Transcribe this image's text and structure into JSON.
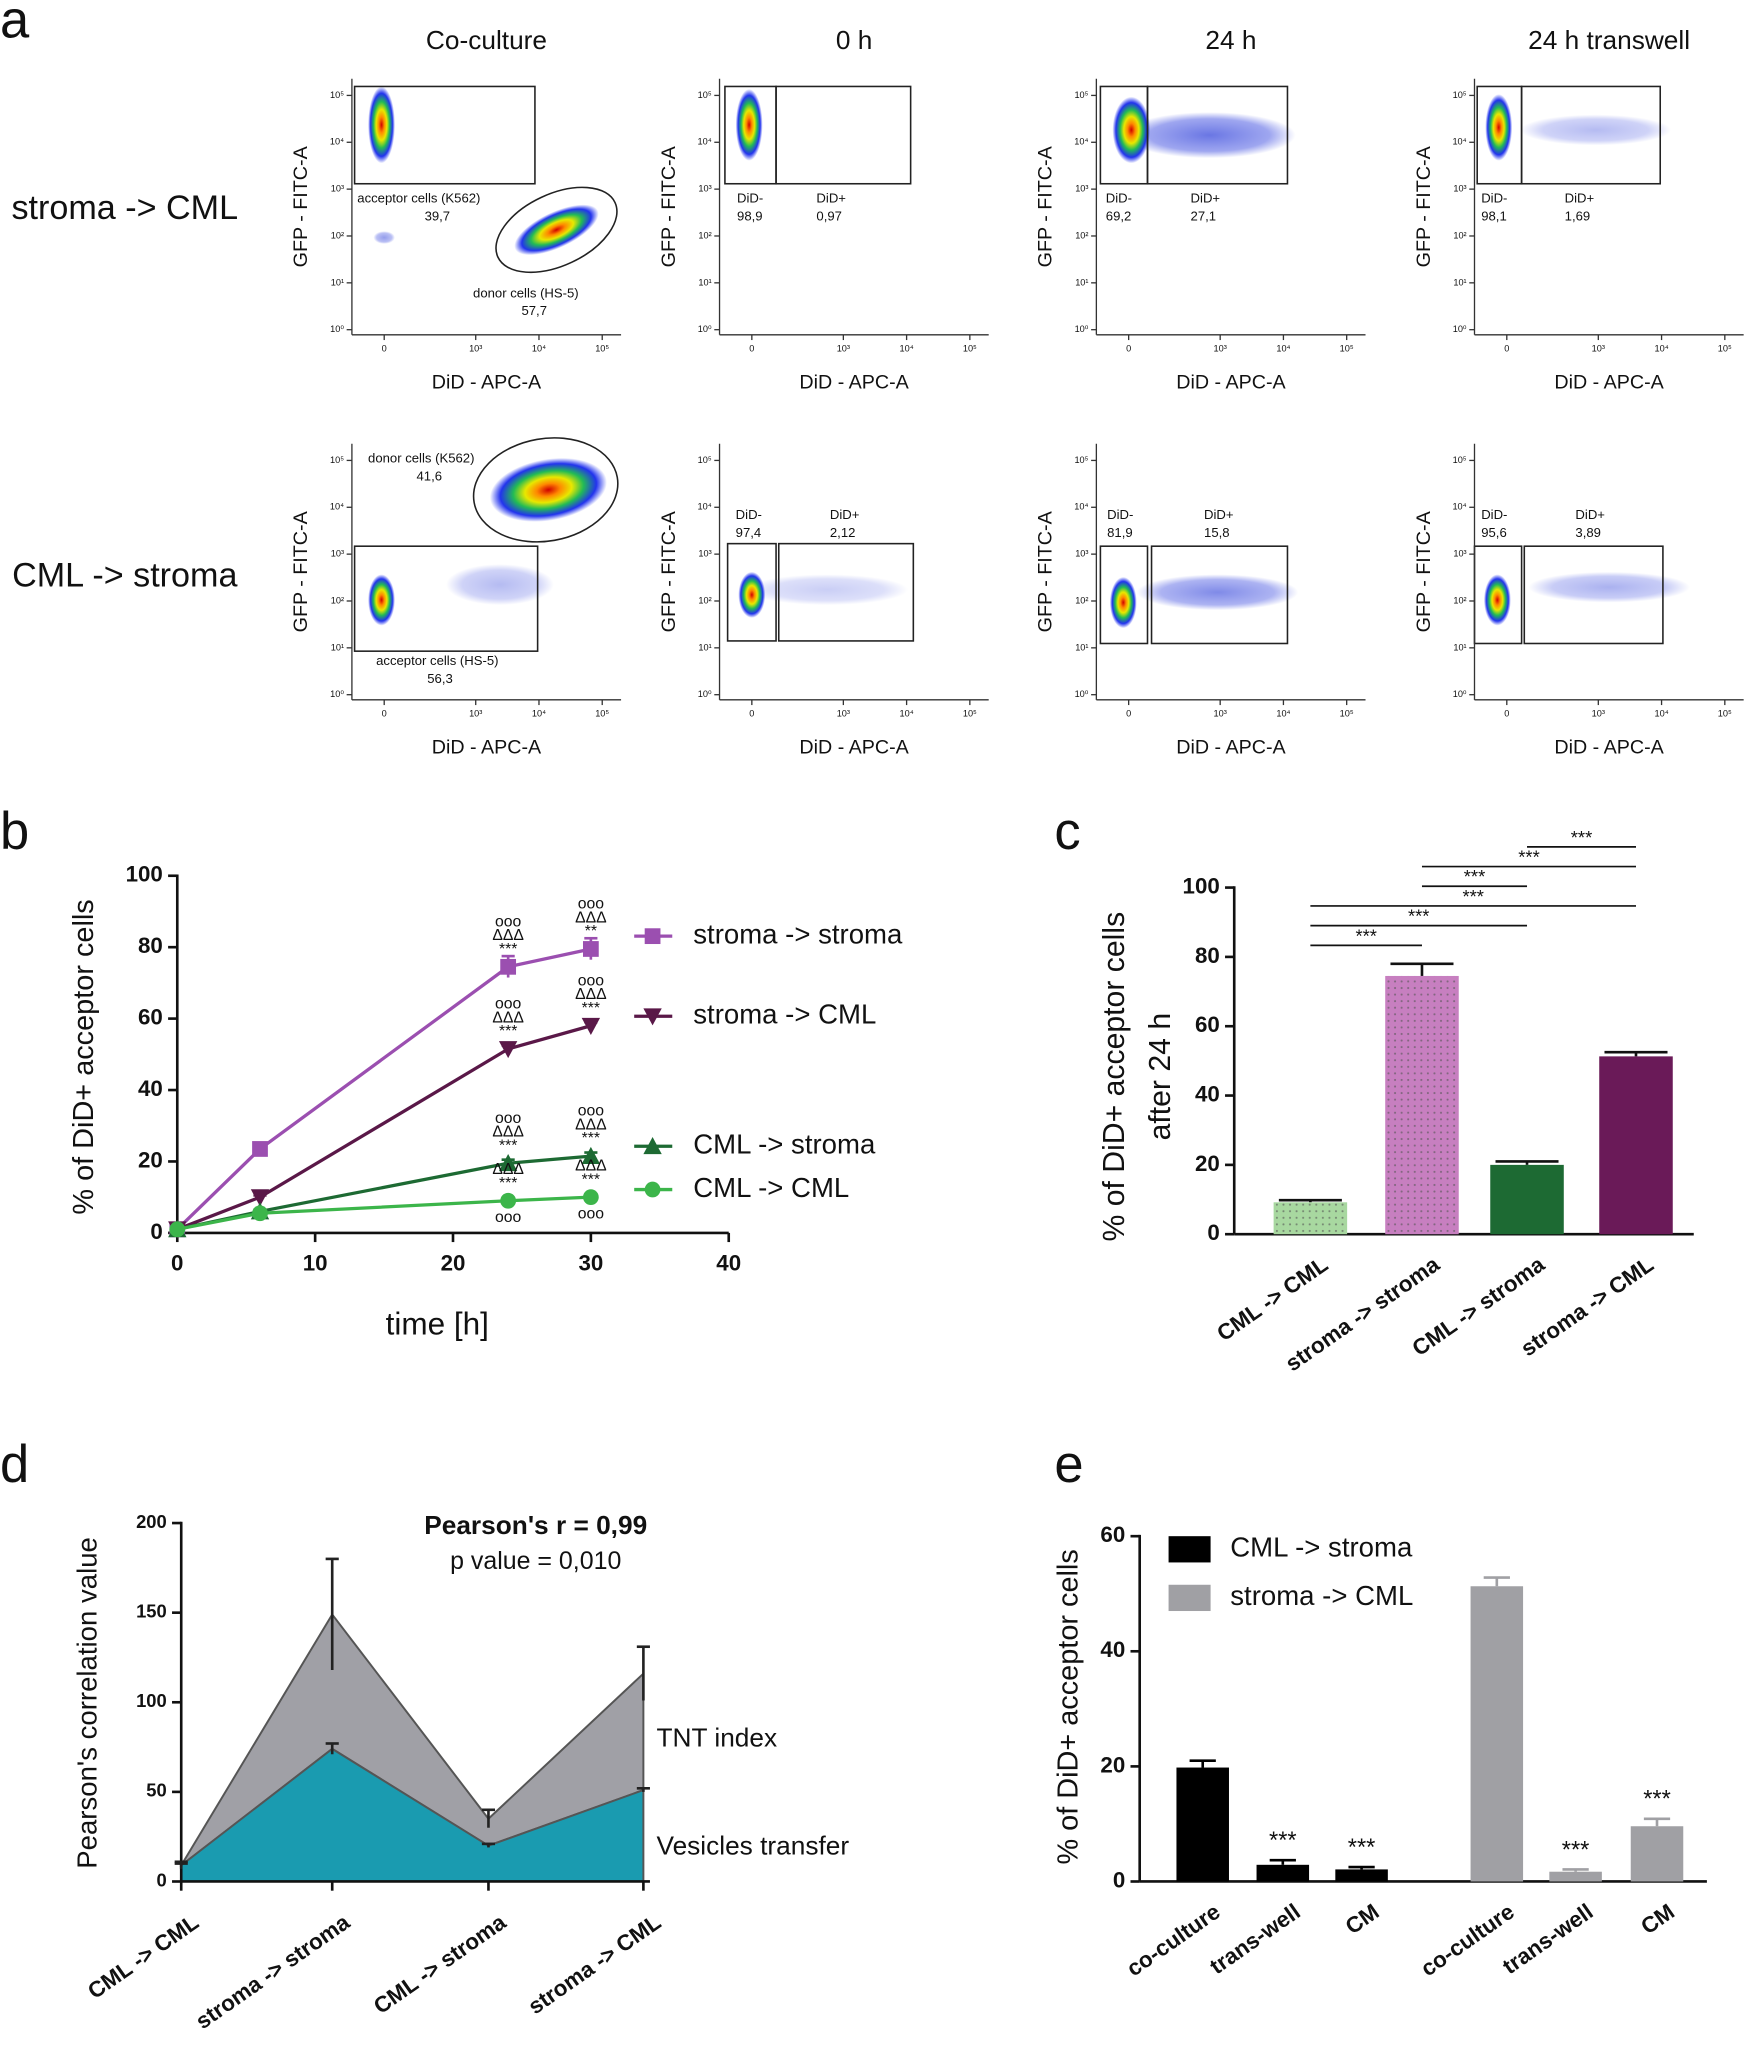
{
  "panel_labels": [
    "a",
    "b",
    "c",
    "d",
    "e"
  ],
  "chart_data": [
    {
      "type": "flow",
      "columns": [
        "Co-culture",
        "0 h",
        "24 h",
        "24 h transwell"
      ],
      "rows": [
        "stroma -> CML",
        "CML -> stroma"
      ],
      "xlabel": "DiD - APC-A",
      "ylabel": "GFP - FITC-A",
      "xticks": [
        0,
        {
          "value": 1000,
          "label": "10³"
        },
        {
          "value": 10000,
          "label": "10⁴"
        },
        {
          "value": 100000,
          "label": "10⁵"
        }
      ],
      "yticks": [
        {
          "value": 1,
          "label": "10⁰"
        },
        {
          "value": 10,
          "label": "10¹"
        },
        {
          "value": 100,
          "label": "10²"
        },
        {
          "value": 1000,
          "label": "10³"
        },
        {
          "value": 10000,
          "label": "10⁴"
        },
        {
          "value": 100000,
          "label": "10⁵"
        }
      ],
      "plots": [
        [
          {
            "gates": [
              "acceptor cells (K562)",
              "donor cells (HS-5)"
            ],
            "values": [
              39.7,
              57.7
            ],
            "value_labels": [
              "39,7",
              "57,7"
            ]
          },
          {
            "gates": [
              "DiD-",
              "DiD+"
            ],
            "values": [
              98.9,
              0.97
            ],
            "value_labels": [
              "98,9",
              "0,97"
            ]
          },
          {
            "gates": [
              "DiD-",
              "DiD+"
            ],
            "values": [
              69.2,
              27.1
            ],
            "value_labels": [
              "69,2",
              "27,1"
            ]
          },
          {
            "gates": [
              "DiD-",
              "DiD+"
            ],
            "values": [
              98.1,
              1.69
            ],
            "value_labels": [
              "98,1",
              "1,69"
            ]
          }
        ],
        [
          {
            "gates": [
              "donor cells (K562)",
              "acceptor cells (HS-5)"
            ],
            "values": [
              41.6,
              56.3
            ],
            "value_labels": [
              "41,6",
              "56,3"
            ]
          },
          {
            "gates": [
              "DiD-",
              "DiD+"
            ],
            "values": [
              97.4,
              2.12
            ],
            "value_labels": [
              "97,4",
              "2,12"
            ]
          },
          {
            "gates": [
              "DiD-",
              "DiD+"
            ],
            "values": [
              81.9,
              15.8
            ],
            "value_labels": [
              "81,9",
              "15,8"
            ]
          },
          {
            "gates": [
              "DiD-",
              "DiD+"
            ],
            "values": [
              95.6,
              3.89
            ],
            "value_labels": [
              "95,6",
              "3,89"
            ]
          }
        ]
      ]
    },
    {
      "type": "line",
      "xlabel": "time [h]",
      "ylabel": "% of DiD+ acceptor cells",
      "x": [
        0,
        6,
        24,
        30
      ],
      "xlim": [
        0,
        40
      ],
      "xticks": [
        0,
        10,
        20,
        30,
        40
      ],
      "ylim": [
        0,
        100
      ],
      "yticks": [
        0,
        20,
        40,
        60,
        80,
        100
      ],
      "series": [
        {
          "name": "stroma -> stroma",
          "color": "#9b4fb0",
          "marker": "square",
          "values": [
            1,
            23.5,
            74.5,
            79.5
          ],
          "errors": [
            0.5,
            1,
            3,
            3
          ],
          "annotations_above": [
            null,
            null,
            [
              "ooo",
              "ΔΔΔ",
              "***"
            ],
            [
              "ooo",
              "ΔΔΔ",
              "**"
            ]
          ],
          "annotations_below": [
            null,
            null,
            null,
            null
          ]
        },
        {
          "name": "stroma -> CML",
          "color": "#5a1848",
          "marker": "triangle-down",
          "values": [
            1,
            10,
            51.5,
            58
          ],
          "errors": [
            0.3,
            0.5,
            1,
            1
          ],
          "annotations_above": [
            null,
            null,
            [
              "ooo",
              "ΔΔΔ",
              "***"
            ],
            [
              "ooo",
              "ΔΔΔ",
              "***"
            ]
          ],
          "annotations_below": [
            null,
            null,
            null,
            null
          ]
        },
        {
          "name": "CML -> stroma",
          "color": "#1d6a33",
          "marker": "triangle",
          "values": [
            1,
            6,
            19.5,
            21.5
          ],
          "errors": [
            0.3,
            0.5,
            1,
            1
          ],
          "annotations_above": [
            null,
            null,
            [
              "ooo",
              "ΔΔΔ",
              "***"
            ],
            [
              "ooo",
              "ΔΔΔ",
              "***"
            ]
          ],
          "annotations_below": [
            null,
            null,
            null,
            null
          ]
        },
        {
          "name": "CML -> CML",
          "color": "#3cb54a",
          "marker": "circle",
          "values": [
            1,
            5.5,
            9,
            10
          ],
          "errors": [
            0.3,
            0.5,
            0.5,
            0.5
          ],
          "annotations_above": [
            null,
            null,
            [
              "ΔΔΔ",
              "***"
            ],
            [
              "ΔΔΔ",
              "***"
            ]
          ],
          "annotations_below": [
            null,
            null,
            [
              "ooo"
            ],
            [
              "ooo"
            ]
          ]
        }
      ]
    },
    {
      "type": "bar",
      "ylabel": [
        "% of DiD+ acceptor cells",
        "after 24 h"
      ],
      "categories": [
        "CML -> CML",
        "stroma -> stroma",
        "CML -> stroma",
        "stroma -> CML"
      ],
      "values": [
        9.2,
        74.5,
        20,
        51.3
      ],
      "errors": [
        0.6,
        3.5,
        1,
        1.2
      ],
      "colors": [
        "#a8d8a0",
        "#c77fc0",
        "#1d6a33",
        "#6a1a58"
      ],
      "patterns": [
        "dots",
        "dots",
        "none",
        "none"
      ],
      "ylim": [
        0,
        100
      ],
      "yticks": [
        0,
        20,
        40,
        60,
        80,
        100
      ],
      "comparisons": [
        {
          "pair": [
            0,
            1
          ],
          "label": "***"
        },
        {
          "pair": [
            0,
            2
          ],
          "label": "***"
        },
        {
          "pair": [
            0,
            3
          ],
          "label": "***"
        },
        {
          "pair": [
            1,
            2
          ],
          "label": "***"
        },
        {
          "pair": [
            1,
            3
          ],
          "label": "***"
        },
        {
          "pair": [
            2,
            3
          ],
          "label": "***"
        }
      ]
    },
    {
      "type": "area",
      "ylabel": "Pearson's correlation value",
      "categories": [
        "CML -> CML",
        "stroma -> stroma",
        "CML -> stroma",
        "stroma -> CML"
      ],
      "ylim": [
        0,
        200
      ],
      "yticks": [
        0,
        50,
        100,
        150,
        200
      ],
      "annotation": [
        "Pearson's r = 0,99",
        "p value = 0,010"
      ],
      "series": [
        {
          "name": "Vesicles transfer",
          "color": "#1a9bb0",
          "values": [
            9,
            74,
            20,
            51
          ],
          "errors": [
            1,
            3,
            1,
            1
          ]
        },
        {
          "name": "TNT index",
          "color": "#a0a0a6",
          "values": [
            0,
            75,
            15,
            65
          ],
          "errors": [
            2,
            31,
            5,
            15
          ]
        }
      ]
    },
    {
      "type": "grouped_bar",
      "ylabel": "% of DiD+ acceptor cells",
      "categories": [
        "co-culture",
        "trans-well",
        "CM",
        "co-culture",
        "trans-well",
        "CM"
      ],
      "ylim": [
        0,
        60
      ],
      "yticks": [
        0,
        20,
        40,
        60
      ],
      "series": [
        {
          "name": "CML -> stroma",
          "color": "#000000",
          "values": [
            19.8,
            2.9,
            2.1,
            null,
            null,
            null
          ],
          "errors": [
            1.2,
            0.8,
            0.4,
            null,
            null,
            null
          ],
          "annotations": [
            null,
            "***",
            "***",
            null,
            null,
            null
          ]
        },
        {
          "name": "stroma -> CML",
          "color": "#a0a0a4",
          "values": [
            null,
            null,
            null,
            51.3,
            1.7,
            9.6
          ],
          "errors": [
            null,
            null,
            null,
            1.5,
            0.4,
            1.3
          ],
          "annotations": [
            null,
            null,
            null,
            null,
            "***",
            "***"
          ]
        }
      ]
    }
  ]
}
